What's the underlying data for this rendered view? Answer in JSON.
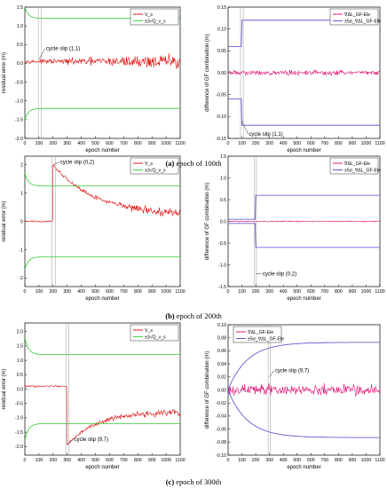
{
  "figure": {
    "captions": [
      {
        "label": "(a)",
        "text": "epoch of 100th"
      },
      {
        "label": "(b)",
        "text": "epoch of 200th"
      },
      {
        "label": "(c)",
        "text": "epoch of 300th"
      }
    ]
  },
  "colors": {
    "residual": "#e00000",
    "threshold": "#33cc33",
    "gf": "#e0006a",
    "gf_bound": "#5544cc",
    "marker": "#999999"
  },
  "chart_data": [
    {
      "id": "a-left",
      "type": "line",
      "xlabel": "epoch number",
      "ylabel": "residual error (m)",
      "xlim": [
        0,
        1100
      ],
      "ylim": [
        -2.0,
        1.5
      ],
      "xticks": [
        0,
        100,
        200,
        300,
        400,
        500,
        600,
        700,
        800,
        900,
        1000,
        1100
      ],
      "yticks": [
        -2.0,
        -1.5,
        -1.0,
        -0.5,
        0.0,
        0.5,
        1.0,
        1.5
      ],
      "ytick_labels": [
        "-2.0",
        "-1.5",
        "-1.0",
        "-0.5",
        "0.0",
        "0.5",
        "1.0",
        "1.5"
      ],
      "legend": [
        "V_s",
        "±3√Q_v_s"
      ],
      "legend_position": "top-right",
      "series": [
        {
          "name": "V_s",
          "kind": "residual",
          "pattern": "noise_growing",
          "base": 0.05,
          "noise_start": 0.05,
          "noise_end": 0.3
        },
        {
          "name": "±3√Q_v_s",
          "kind": "threshold",
          "pattern": "bound",
          "settle": 1.2,
          "start": 1.5
        }
      ],
      "annotations": [
        {
          "text": "cycle slip (1,1)",
          "x": 100,
          "y": 0.1,
          "label_x": 150,
          "label_y": 0.4
        }
      ],
      "marker_lines": [
        95,
        118
      ]
    },
    {
      "id": "a-right",
      "type": "line",
      "xlabel": "epoch number",
      "ylabel": "difference of GF combination (m)",
      "xlim": [
        0,
        1100
      ],
      "ylim": [
        -0.15,
        0.15
      ],
      "xticks": [
        0,
        100,
        200,
        300,
        400,
        500,
        600,
        700,
        800,
        900,
        1000,
        1100
      ],
      "yticks": [
        -0.15,
        -0.1,
        -0.05,
        0.0,
        0.05,
        0.1,
        0.15
      ],
      "ytick_labels": [
        "-0.15",
        "-0.10",
        "-0.05",
        "0.00",
        "0.05",
        "0.10",
        "0.15"
      ],
      "legend": [
        "∇ΔL_GF-Ele",
        "±5σ_∇ΔL_GF-Ele"
      ],
      "legend_position": "top-right",
      "series": [
        {
          "name": "∇ΔL_GF-Ele",
          "kind": "gf",
          "pattern": "noise",
          "amp": 0.008
        },
        {
          "name": "±5σ_∇ΔL_GF-Ele",
          "kind": "gf_bound",
          "pattern": "bound_jump",
          "before": 0.06,
          "after": 0.12,
          "at": 100
        }
      ],
      "annotations": [
        {
          "text": "cycle slip (1,1)",
          "x": 100,
          "y": -0.11,
          "label_x": 150,
          "label_y": -0.14
        }
      ],
      "marker_lines": [
        90,
        110
      ]
    },
    {
      "id": "b-left",
      "type": "line",
      "xlabel": "epoch number",
      "ylabel": "residual error (m)",
      "xlim": [
        0,
        1100
      ],
      "ylim": [
        -2.3,
        2.3
      ],
      "xticks": [
        0,
        100,
        200,
        300,
        400,
        500,
        600,
        700,
        800,
        900,
        1000,
        1100
      ],
      "yticks": [
        -2,
        -1,
        0,
        1,
        2
      ],
      "ytick_labels": [
        "-2",
        "-1",
        "0",
        "1",
        "2"
      ],
      "legend": [
        "V_s",
        "±3√Q_v_s"
      ],
      "legend_position": "top-right",
      "series": [
        {
          "name": "V_s",
          "kind": "residual",
          "pattern": "step_decay",
          "at": 200,
          "pre": 0.0,
          "jump": 2.0,
          "tail": 0.2,
          "noise": 0.15
        },
        {
          "name": "±3√Q_v_s",
          "kind": "threshold",
          "pattern": "bound",
          "settle": 1.25,
          "start": 1.7
        }
      ],
      "annotations": [
        {
          "text": "cycle slip (0,2)",
          "x": 205,
          "y": 2.0,
          "label_x": 250,
          "label_y": 2.1
        }
      ],
      "marker_lines": [
        190,
        215
      ]
    },
    {
      "id": "b-right",
      "type": "line",
      "xlabel": "epoch number",
      "ylabel": "difference of GF combination (m)",
      "xlim": [
        0,
        1100
      ],
      "ylim": [
        -1.5,
        1.5
      ],
      "xticks": [
        0,
        100,
        200,
        300,
        400,
        500,
        600,
        700,
        800,
        900,
        1000,
        1100
      ],
      "yticks": [
        -1.5,
        -1.0,
        -0.5,
        0.0,
        0.5,
        1.0,
        1.5
      ],
      "ytick_labels": [
        "-1.5",
        "-1.0",
        "-0.5",
        "0.0",
        "0.5",
        "1.0",
        "1.5"
      ],
      "legend": [
        "∇ΔL_GF-Ele",
        "±5σ_∇ΔL_GF-Ele"
      ],
      "legend_position": "top-right",
      "series": [
        {
          "name": "∇ΔL_GF-Ele",
          "kind": "gf",
          "pattern": "noise",
          "amp": 0.02
        },
        {
          "name": "±5σ_∇ΔL_GF-Ele",
          "kind": "gf_bound",
          "pattern": "bound_jump",
          "before": 0.05,
          "after": 0.6,
          "at": 200
        }
      ],
      "annotations": [
        {
          "text": "cycle slip (0,2)",
          "x": 200,
          "y": -1.2,
          "label_x": 250,
          "label_y": -1.2
        }
      ],
      "marker_lines": [
        190,
        205
      ]
    },
    {
      "id": "c-left",
      "type": "line",
      "xlabel": "epoch number",
      "ylabel": "residual error (m)",
      "xlim": [
        0,
        1100
      ],
      "ylim": [
        -2.3,
        2.3
      ],
      "xticks": [
        0,
        100,
        200,
        300,
        400,
        500,
        600,
        700,
        800,
        900,
        1000,
        1100
      ],
      "yticks": [
        -2.0,
        -1.5,
        -1.0,
        -0.5,
        0.0,
        0.5,
        1.0,
        1.5,
        2.0
      ],
      "ytick_labels": [
        "-2.0",
        "-1.5",
        "-1.0",
        "-0.5",
        "0.0",
        "0.5",
        "1.0",
        "1.5",
        "2.0"
      ],
      "legend": [
        "V_s",
        "±3√Q_v_s"
      ],
      "legend_position": "top-right",
      "series": [
        {
          "name": "V_s",
          "kind": "residual",
          "pattern": "step_recover",
          "at": 300,
          "pre": 0.1,
          "jump": -1.95,
          "tail": -0.8,
          "noise": 0.12
        },
        {
          "name": "±3√Q_v_s",
          "kind": "threshold",
          "pattern": "bound",
          "settle": 1.2,
          "start": 1.8
        }
      ],
      "annotations": [
        {
          "text": "cycle slip (9,7)",
          "x": 300,
          "y": -1.95,
          "label_x": 350,
          "label_y": -1.75
        }
      ],
      "marker_lines": [
        290,
        310
      ]
    },
    {
      "id": "c-right",
      "type": "line",
      "xlabel": "epoch number",
      "ylabel": "difference of GF combination (m)",
      "xlim": [
        0,
        1100
      ],
      "ylim": [
        -0.1,
        0.1
      ],
      "xticks": [
        0,
        100,
        200,
        300,
        400,
        500,
        600,
        700,
        800,
        900,
        1000,
        1100
      ],
      "yticks": [
        -0.1,
        -0.08,
        -0.06,
        -0.04,
        -0.02,
        0.0,
        0.02,
        0.04,
        0.06,
        0.08,
        0.1
      ],
      "ytick_labels": [
        "-0.10",
        "-0.08",
        "-0.06",
        "-0.04",
        "-0.02",
        "0.00",
        "0.02",
        "0.04",
        "0.06",
        "0.08",
        "0.10"
      ],
      "legend": [
        "∇ΔL_GF-Ele",
        "±5σ_∇ΔL_GF-Ele"
      ],
      "legend_position": "top-left",
      "series": [
        {
          "name": "∇ΔL_GF-Ele",
          "kind": "gf",
          "pattern": "noise",
          "amp": 0.012
        },
        {
          "name": "±5σ_∇ΔL_GF-Ele",
          "kind": "gf_bound",
          "pattern": "bound_grow",
          "end": 0.073
        }
      ],
      "annotations": [
        {
          "text": "cycle slip (9,7)",
          "x": 300,
          "y": 0.02,
          "label_x": 340,
          "label_y": 0.03
        }
      ],
      "marker_lines": [
        290,
        305
      ]
    }
  ]
}
